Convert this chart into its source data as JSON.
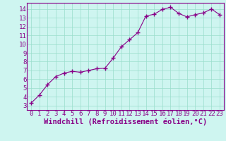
{
  "x": [
    0,
    1,
    2,
    3,
    4,
    5,
    6,
    7,
    8,
    9,
    10,
    11,
    12,
    13,
    14,
    15,
    16,
    17,
    18,
    19,
    20,
    21,
    22,
    23
  ],
  "y": [
    3.3,
    4.2,
    5.4,
    6.3,
    6.7,
    6.9,
    6.8,
    7.0,
    7.2,
    7.25,
    8.4,
    9.7,
    10.5,
    11.3,
    13.2,
    13.4,
    13.95,
    14.2,
    13.5,
    13.1,
    13.35,
    13.55,
    14.0,
    13.35
  ],
  "line_color": "#880088",
  "marker": "+",
  "marker_size": 4,
  "bg_color": "#cef5f0",
  "grid_color": "#99ddcc",
  "axis_color": "#880088",
  "spine_color": "#880088",
  "xlabel": "Windchill (Refroidissement éolien,°C)",
  "xlim": [
    -0.5,
    23.5
  ],
  "ylim": [
    2.5,
    14.7
  ],
  "yticks": [
    3,
    4,
    5,
    6,
    7,
    8,
    9,
    10,
    11,
    12,
    13,
    14
  ],
  "xticks": [
    0,
    1,
    2,
    3,
    4,
    5,
    6,
    7,
    8,
    9,
    10,
    11,
    12,
    13,
    14,
    15,
    16,
    17,
    18,
    19,
    20,
    21,
    22,
    23
  ],
  "tick_fontsize": 6.5,
  "xlabel_fontsize": 7.5
}
